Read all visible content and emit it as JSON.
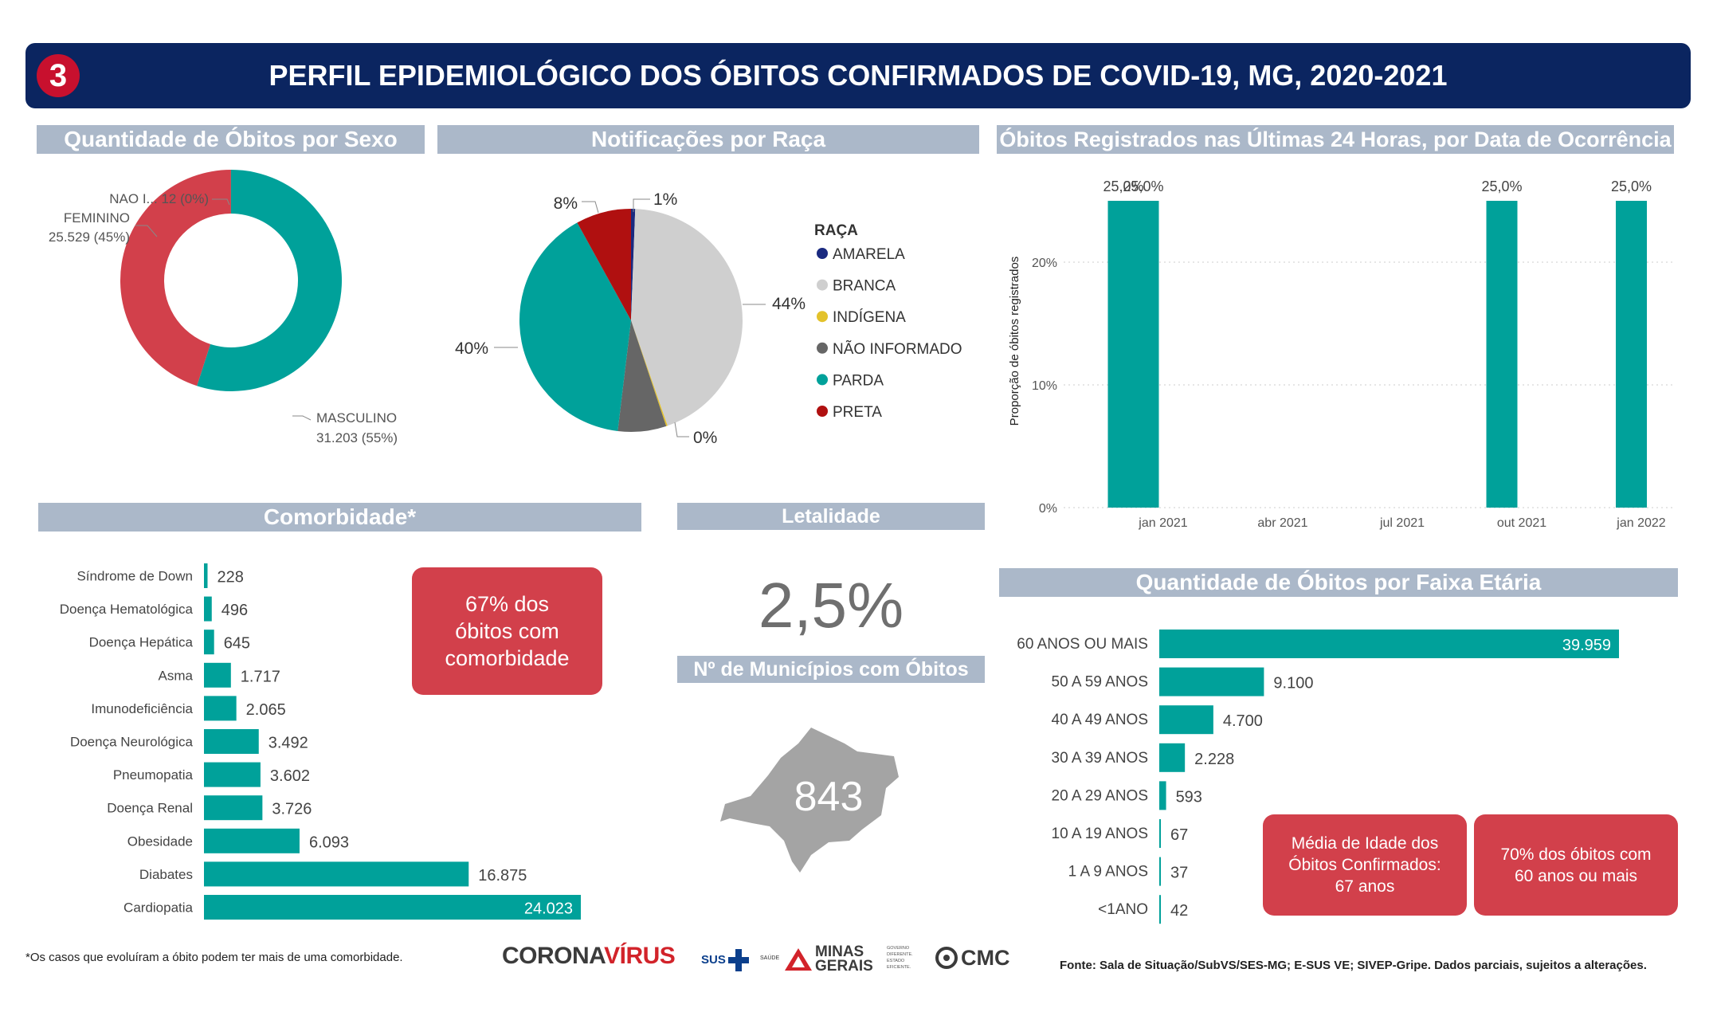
{
  "header": {
    "number": "3",
    "title": "PERFIL EPIDEMIOLÓGICO DOS ÓBITOS CONFIRMADOS DE COVID-19, MG, 2020-2021"
  },
  "sections": {
    "sexo": "Quantidade de Óbitos por Sexo",
    "raca": "Notificações por Raça",
    "ultimas24h": "Óbitos Registrados nas Últimas 24 Horas, por Data de Ocorrência",
    "comorbidade": "Comorbidade*",
    "letalidade": "Letalidade",
    "municipios": "Nº de Municípios com Óbitos",
    "faixa": "Quantidade de Óbitos por Faixa Etária"
  },
  "kpis": {
    "letalidade": "2,5%",
    "municipios": "843",
    "comorbidade_line1": "67% dos",
    "comorbidade_line2": "óbitos com",
    "comorbidade_line3": "comorbidade",
    "media_line1": "Média de Idade dos",
    "media_line2": "Óbitos Confirmados:",
    "media_line3": "67 anos",
    "idosos_line1": "70% dos óbitos com",
    "idosos_line2": "60 anos ou mais"
  },
  "footer": {
    "note": "*Os casos que evoluíram a óbito podem ter mais de uma comorbidade.",
    "source": "Fonte: Sala de Situação/SubVS/SES-MG; E-SUS VE; SIVEP-Gripe. Dados parciais, sujeitos a alterações.",
    "logo_corona_a": "CORONA",
    "logo_corona_b": "VÍRUS",
    "logo_sus": "SUS",
    "logo_saude": "SAÚDE",
    "logo_mg_1": "MINAS",
    "logo_mg_2": "GERAIS",
    "logo_gov_1": "GOVERNO",
    "logo_gov_2": "DIFERENTE.",
    "logo_gov_3": "ESTADO",
    "logo_gov_4": "EFICIENTE.",
    "logo_cmc": "CMC"
  },
  "colors": {
    "teal": "#00a19a",
    "red": "#d2404b",
    "navy": "#0b2560",
    "gray": "#abb8c9"
  },
  "chart_data": [
    {
      "id": "sexo",
      "type": "pie",
      "variant": "donut",
      "slices": [
        {
          "label": "MASCULINO",
          "value": 31203,
          "display": "31.203 (55%)",
          "color": "#00a19a"
        },
        {
          "label": "FEMININO",
          "value": 25529,
          "display": "25.529 (45%)",
          "color": "#d2404b"
        },
        {
          "label": "NAO I...",
          "value": 12,
          "display": "12 (0%)",
          "color": "#404040"
        }
      ]
    },
    {
      "id": "raca",
      "type": "pie",
      "legend_title": "RAÇA",
      "legend_position": "right",
      "slices": [
        {
          "label": "AMARELA",
          "value": 0.6,
          "display": "1%",
          "color": "#1a2a80"
        },
        {
          "label": "BRANCA",
          "value": 44,
          "display": "44%",
          "color": "#cfcfcf"
        },
        {
          "label": "INDÍGENA",
          "value": 0.2,
          "display": "0%",
          "color": "#e3c22b"
        },
        {
          "label": "NÃO INFORMADO",
          "value": 7,
          "display": "",
          "color": "#666666"
        },
        {
          "label": "PARDA",
          "value": 40,
          "display": "40%",
          "color": "#00a19a"
        },
        {
          "label": "PRETA",
          "value": 8,
          "display": "8%",
          "color": "#b01010"
        }
      ]
    },
    {
      "id": "ultimas24h",
      "type": "bar",
      "ylabel": "Proporção de óbitos registrados",
      "ylim": [
        0,
        0.25
      ],
      "yticks": [
        0,
        0.1,
        0.2
      ],
      "ytick_labels": [
        "0%",
        "10%",
        "20%"
      ],
      "xtick_labels": [
        "jan 2021",
        "abr 2021",
        "jul 2021",
        "out 2021",
        "jan 2022"
      ],
      "x_range": [
        -2.0,
        13.5
      ],
      "xtick_positions": [
        0.5,
        3.5,
        6.5,
        9.5,
        12.5
      ],
      "bar_positions": [
        -0.5,
        0.0,
        9.0,
        12.25
      ],
      "values": [
        0.25,
        0.25,
        0.25,
        0.25
      ],
      "labels": [
        "25,0%",
        "25,0%",
        "25,0%",
        "25,0%"
      ],
      "grid": true
    },
    {
      "id": "comorbidade",
      "type": "bar",
      "orientation": "horizontal",
      "categories": [
        "Síndrome de Down",
        "Doença Hematológica",
        "Doença Hepática",
        "Asma",
        "Imunodeficiência",
        "Doença Neurológica",
        "Pneumopatia",
        "Doença Renal",
        "Obesidade",
        "Diabates",
        "Cardiopatia"
      ],
      "values": [
        228,
        496,
        645,
        1717,
        2065,
        3492,
        3602,
        3726,
        6093,
        16875,
        24023
      ],
      "labels": [
        "228",
        "496",
        "645",
        "1.717",
        "2.065",
        "3.492",
        "3.602",
        "3.726",
        "6.093",
        "16.875",
        "24.023"
      ]
    },
    {
      "id": "faixa",
      "type": "bar",
      "orientation": "horizontal",
      "categories": [
        "60 ANOS OU MAIS",
        "50 A 59 ANOS",
        "40 A 49 ANOS",
        "30 A 39 ANOS",
        "20 A 29 ANOS",
        "10 A 19 ANOS",
        "1 A 9 ANOS",
        "<1ANO"
      ],
      "values": [
        39959,
        9100,
        4700,
        2228,
        593,
        67,
        37,
        42
      ],
      "labels": [
        "39.959",
        "9.100",
        "4.700",
        "2.228",
        "593",
        "67",
        "37",
        "42"
      ]
    }
  ]
}
